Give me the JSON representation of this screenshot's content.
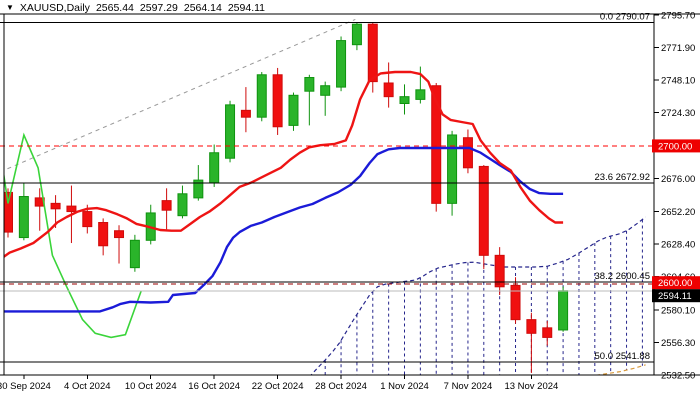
{
  "header": {
    "symbol_label": "XAUUSD,Daily",
    "open": "2565.44",
    "high": "2597.29",
    "low": "2564.14",
    "close": "2594.11"
  },
  "colors": {
    "bull": "#2ab42a",
    "bull_stroke": "#0f930f",
    "bear": "#f01010",
    "bear_stroke": "#cf0b0b",
    "ma_fast": "#ee1414",
    "ma_slow": "#1b1bd8",
    "chikou": "#3ad43a",
    "senkou_a": "#26268c",
    "senkou_b": "#d89a3e",
    "trendline": "#999999",
    "level_red": "#ff0000",
    "level_dark_red": "#990000",
    "current_line": "#bbbbbb",
    "badge_red_bg": "#ee0000",
    "badge_black_bg": "#000000",
    "badge_text": "#ffffff",
    "frame": "#000000",
    "text": "#000000"
  },
  "chart_data": {
    "type": "candlestick",
    "title": "XAUUSD,Daily",
    "symbol": "XAUUSD",
    "timeframe": "Daily",
    "y_axis": {
      "ticks": [
        2795.7,
        2771.9,
        2748.1,
        2724.3,
        2700.0,
        2676.0,
        2652.2,
        2628.4,
        2604.6,
        2580.1,
        2556.3,
        2532.5
      ],
      "range": [
        2529.0,
        2796.5
      ],
      "badge_ticks": [
        2700.0
      ]
    },
    "x_axis": {
      "labels": [
        {
          "text": "30 Sep 2024",
          "i": 1
        },
        {
          "text": "4 Oct 2024",
          "i": 5
        },
        {
          "text": "10 Oct 2024",
          "i": 9
        },
        {
          "text": "16 Oct 2024",
          "i": 13
        },
        {
          "text": "22 Oct 2024",
          "i": 17
        },
        {
          "text": "28 Oct 2024",
          "i": 21
        },
        {
          "text": "1 Nov 2024",
          "i": 25
        },
        {
          "text": "7 Nov 2024",
          "i": 29
        },
        {
          "text": "13 Nov 2024",
          "i": 33
        }
      ]
    },
    "candles": [
      [
        "27 Sep 2024",
        2666.0,
        2669.0,
        2633.0,
        2637.0
      ],
      [
        "30 Sep 2024",
        2633.0,
        2673.0,
        2631.0,
        2663.0
      ],
      [
        "1 Oct 2024",
        2662.0,
        2669.0,
        2638.0,
        2656.0
      ],
      [
        "2 Oct 2024",
        2658.0,
        2664.0,
        2640.0,
        2654.0
      ],
      [
        "3 Oct 2024",
        2656.0,
        2671.0,
        2629.0,
        2652.0
      ],
      [
        "4 Oct 2024",
        2652.0,
        2657.0,
        2636.0,
        2641.0
      ],
      [
        "7 Oct 2024",
        2644.0,
        2647.0,
        2620.0,
        2627.0
      ],
      [
        "8 Oct 2024",
        2638.0,
        2642.0,
        2614.0,
        2633.0
      ],
      [
        "9 Oct 2024",
        2611.0,
        2635.0,
        2608.0,
        2631.0
      ],
      [
        "10 Oct 2024",
        2631.0,
        2657.0,
        2628.0,
        2651.0
      ],
      [
        "11 Oct 2024",
        2660.0,
        2669.0,
        2639.0,
        2653.0
      ],
      [
        "14 Oct 2024",
        2649.0,
        2671.0,
        2647.0,
        2665.0
      ],
      [
        "15 Oct 2024",
        2662.0,
        2686.0,
        2660.0,
        2675.0
      ],
      [
        "16 Oct 2024",
        2673.0,
        2701.0,
        2670.0,
        2695.0
      ],
      [
        "17 Oct 2024",
        2691.0,
        2733.0,
        2688.0,
        2730.0
      ],
      [
        "18 Oct 2024",
        2726.0,
        2743.0,
        2710.0,
        2721.0
      ],
      [
        "21 Oct 2024",
        2721.0,
        2754.0,
        2718.0,
        2752.0
      ],
      [
        "22 Oct 2024",
        2752.0,
        2757.0,
        2708.0,
        2714.0
      ],
      [
        "23 Oct 2024",
        2715.0,
        2739.0,
        2711.0,
        2737.0
      ],
      [
        "24 Oct 2024",
        2740.0,
        2752.0,
        2715.0,
        2750.0
      ],
      [
        "25 Oct 2024",
        2737.0,
        2747.0,
        2722.0,
        2744.0
      ],
      [
        "28 Oct 2024",
        2743.0,
        2780.0,
        2740.0,
        2777.0
      ],
      [
        "29 Oct 2024",
        2774.0,
        2790.1,
        2770.0,
        2789.0
      ],
      [
        "30 Oct 2024",
        2789.0,
        2790.0,
        2739.0,
        2747.0
      ],
      [
        "31 Oct 2024",
        2746.0,
        2761.0,
        2728.0,
        2736.0
      ],
      [
        "1 Nov 2024",
        2731.0,
        2745.0,
        2723.0,
        2736.0
      ],
      [
        "4 Nov 2024",
        2734.0,
        2758.0,
        2731.0,
        2741.0
      ],
      [
        "5 Nov 2024",
        2744.0,
        2746.0,
        2652.0,
        2658.0
      ],
      [
        "6 Nov 2024",
        2658.0,
        2711.0,
        2649.0,
        2708.0
      ],
      [
        "7 Nov 2024",
        2706.0,
        2712.0,
        2680.0,
        2684.0
      ],
      [
        "8 Nov 2024",
        2685.0,
        2686.0,
        2610.0,
        2620.0
      ],
      [
        "11 Nov 2024",
        2620.0,
        2626.0,
        2591.0,
        2597.0
      ],
      [
        "12 Nov 2024",
        2598.0,
        2604.0,
        2570.0,
        2573.0
      ],
      [
        "13 Nov 2024",
        2573.0,
        2578.0,
        2534.0,
        2563.0
      ],
      [
        "14 Nov 2024",
        2567.0,
        2572.0,
        2554.0,
        2560.0
      ],
      [
        "15 Nov 2024",
        2565.44,
        2597.29,
        2564.14,
        2594.11
      ]
    ],
    "overlays": {
      "red_ma": [
        [
          -0.5,
          2617
        ],
        [
          0.1,
          2622
        ],
        [
          0.8,
          2625
        ],
        [
          1.6,
          2629
        ],
        [
          2.5,
          2637
        ],
        [
          3.1,
          2644
        ],
        [
          3.7,
          2648
        ],
        [
          4.4,
          2652
        ],
        [
          5.0,
          2654
        ],
        [
          5.6,
          2654.5
        ],
        [
          6.2,
          2653
        ],
        [
          6.9,
          2650
        ],
        [
          7.5,
          2647
        ],
        [
          8.1,
          2643
        ],
        [
          8.8,
          2641
        ],
        [
          9.6,
          2638.5
        ],
        [
          10.3,
          2638
        ],
        [
          10.9,
          2638
        ],
        [
          11.5,
          2643
        ],
        [
          12.1,
          2648
        ],
        [
          12.7,
          2652
        ],
        [
          13.4,
          2658
        ],
        [
          14.0,
          2664
        ],
        [
          14.6,
          2670
        ],
        [
          15.3,
          2673
        ],
        [
          15.9,
          2676.5
        ],
        [
          16.5,
          2680
        ],
        [
          17.2,
          2684
        ],
        [
          17.8,
          2690
        ],
        [
          18.4,
          2695
        ],
        [
          19.0,
          2699
        ],
        [
          19.7,
          2700.5
        ],
        [
          20.6,
          2701.5
        ],
        [
          21.3,
          2704
        ],
        [
          21.7,
          2715
        ],
        [
          22.2,
          2734
        ],
        [
          22.8,
          2748
        ],
        [
          23.5,
          2753
        ],
        [
          24.4,
          2754
        ],
        [
          25.4,
          2754
        ],
        [
          26.0,
          2752.5
        ],
        [
          26.5,
          2747
        ],
        [
          26.9,
          2735
        ],
        [
          27.4,
          2723
        ],
        [
          27.9,
          2719
        ],
        [
          28.6,
          2717.5
        ],
        [
          29.3,
          2716
        ],
        [
          29.8,
          2704
        ],
        [
          30.4,
          2695
        ],
        [
          31.0,
          2687.5
        ],
        [
          31.7,
          2682
        ],
        [
          32.3,
          2670
        ],
        [
          32.9,
          2660
        ],
        [
          33.5,
          2653
        ],
        [
          34.1,
          2647
        ],
        [
          34.5,
          2644
        ],
        [
          35.0,
          2644
        ]
      ],
      "blue_ma": [
        [
          -0.5,
          2579
        ],
        [
          3.3,
          2579
        ],
        [
          5.8,
          2579
        ],
        [
          6.6,
          2582
        ],
        [
          7.1,
          2584.5
        ],
        [
          7.7,
          2586
        ],
        [
          9.0,
          2585.5
        ],
        [
          10.1,
          2586
        ],
        [
          10.4,
          2591
        ],
        [
          11.8,
          2592.5
        ],
        [
          12.4,
          2599
        ],
        [
          12.9,
          2605
        ],
        [
          13.4,
          2615
        ],
        [
          13.8,
          2626
        ],
        [
          14.2,
          2633
        ],
        [
          14.6,
          2637
        ],
        [
          15.3,
          2641.5
        ],
        [
          16.0,
          2644
        ],
        [
          16.8,
          2648
        ],
        [
          17.7,
          2652
        ],
        [
          18.4,
          2655
        ],
        [
          19.2,
          2657.5
        ],
        [
          20.0,
          2662
        ],
        [
          20.8,
          2666
        ],
        [
          21.6,
          2671.5
        ],
        [
          22.2,
          2678
        ],
        [
          22.8,
          2687.5
        ],
        [
          23.3,
          2694
        ],
        [
          24.0,
          2697.5
        ],
        [
          24.7,
          2698.5
        ],
        [
          29.1,
          2698.5
        ],
        [
          29.8,
          2695
        ],
        [
          30.4,
          2690.5
        ],
        [
          31.0,
          2686
        ],
        [
          31.7,
          2681
        ],
        [
          32.3,
          2674
        ],
        [
          32.9,
          2668.5
        ],
        [
          33.5,
          2665.5
        ],
        [
          34.2,
          2665
        ],
        [
          35.0,
          2665
        ]
      ],
      "chikou_green": [
        [
          -1.0,
          2736
        ],
        [
          0,
          2658
        ],
        [
          1.0,
          2708
        ],
        [
          1.9,
          2684
        ],
        [
          2.8,
          2620
        ],
        [
          3.7,
          2597
        ],
        [
          4.7,
          2573
        ],
        [
          5.5,
          2563
        ],
        [
          6.5,
          2560
        ],
        [
          7.4,
          2562
        ],
        [
          8.4,
          2594
        ]
      ],
      "senkou_a": [
        [
          19.0,
          2531
        ],
        [
          19.5,
          2537.5
        ],
        [
          20.0,
          2543.5
        ],
        [
          20.5,
          2550
        ],
        [
          20.9,
          2556
        ],
        [
          21.4,
          2565.5
        ],
        [
          21.9,
          2575
        ],
        [
          22.4,
          2584
        ],
        [
          22.8,
          2591
        ],
        [
          23.3,
          2597
        ],
        [
          23.8,
          2599
        ],
        [
          24.3,
          2599.8
        ],
        [
          24.7,
          2600.5
        ],
        [
          25.2,
          2601.2
        ],
        [
          25.7,
          2602
        ],
        [
          26.2,
          2605
        ],
        [
          26.6,
          2608
        ],
        [
          27.1,
          2610.7
        ],
        [
          27.6,
          2612
        ],
        [
          28.2,
          2613.6
        ],
        [
          28.8,
          2614.7
        ],
        [
          29.4,
          2615
        ],
        [
          30.4,
          2613
        ],
        [
          31.3,
          2611.5
        ],
        [
          32.3,
          2611.5
        ],
        [
          33.2,
          2611.5
        ],
        [
          34.0,
          2612
        ],
        [
          34.7,
          2614.5
        ],
        [
          35.3,
          2617
        ],
        [
          35.9,
          2621
        ],
        [
          36.6,
          2626
        ],
        [
          37.2,
          2630.5
        ],
        [
          37.8,
          2633.5
        ],
        [
          38.5,
          2635.5
        ],
        [
          39.1,
          2638.5
        ],
        [
          39.7,
          2643.5
        ],
        [
          40.2,
          2648
        ]
      ],
      "senkou_b": [
        [
          19.0,
          2530
        ],
        [
          30.0,
          2530.5
        ],
        [
          36.3,
          2531
        ],
        [
          37.5,
          2533
        ],
        [
          38.6,
          2535
        ],
        [
          39.5,
          2537.5
        ],
        [
          40.2,
          2540
        ]
      ],
      "trendline": [
        [
          -0.5,
          2681
        ],
        [
          21.9,
          2792.5
        ]
      ]
    },
    "levels": {
      "fibs": [
        {
          "label": "0.0 2790.07",
          "price": 2790.07
        },
        {
          "label": "23.6 2672.92",
          "price": 2672.92
        },
        {
          "label": "38.2 2600.45",
          "price": 2600.45
        },
        {
          "label": "50.0 2541.88",
          "price": 2541.88
        }
      ],
      "red_dashed": [
        {
          "price": 2700.0,
          "shade": "bright"
        },
        {
          "price": 2600.0,
          "shade": "dark"
        }
      ],
      "current_price": 2594.11,
      "badges": [
        {
          "text": "2600.00",
          "price_y": 2600.0,
          "bg": "red"
        },
        {
          "text": "2594.11",
          "price_y": 2594.11,
          "bg": "black"
        }
      ]
    }
  }
}
